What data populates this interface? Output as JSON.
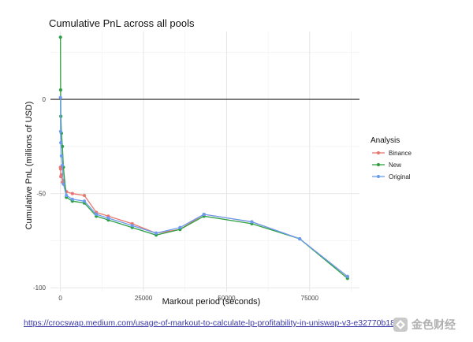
{
  "url_text": "https://crocswap.medium.com/usage-of-markout-to-calculate-lp-profitability-in-uniswap-v3-e32770b18e",
  "watermark": {
    "text": "金色财经",
    "icon": "jinse-logo-icon",
    "color": "#b0b0b0"
  },
  "chart_data": {
    "type": "line",
    "title": "Cumulative PnL across all pools",
    "xlabel": "Markout period (seconds)",
    "ylabel": "Cumulative PnL (millions of USD)",
    "xlim": [
      -3000,
      90000
    ],
    "ylim": [
      -102,
      36
    ],
    "x_ticks": [
      0,
      25000,
      50000,
      75000
    ],
    "x_tick_labels": [
      "0",
      "25000",
      "50000",
      "75000"
    ],
    "y_ticks": [
      -100,
      -50,
      0
    ],
    "y_tick_labels": [
      "-100",
      "-50",
      "0"
    ],
    "reference_line_y": 0,
    "grid": true,
    "legend": {
      "title": "Analysis",
      "position": "right"
    },
    "series": [
      {
        "name": "Binance",
        "color": "#e8776e",
        "x": [
          12,
          60,
          120,
          300,
          600,
          900,
          1800,
          3600,
          7200,
          10800,
          14400,
          21600,
          28800,
          36000,
          43200,
          57600,
          72000,
          86400
        ],
        "y": [
          -36,
          -37,
          -41,
          -40,
          -44,
          -43,
          -49,
          -50,
          -51,
          -60,
          -62,
          -66,
          -71,
          -69,
          -61,
          -65,
          -74,
          -94
        ]
      },
      {
        "name": "New",
        "color": "#2ea043",
        "x": [
          12,
          60,
          120,
          300,
          600,
          900,
          1800,
          3600,
          7200,
          10800,
          14400,
          21600,
          28800,
          36000,
          43200,
          57600,
          72000,
          86400
        ],
        "y": [
          33,
          5,
          -9,
          -18,
          -25,
          -36,
          -52,
          -54,
          -55,
          -62,
          -64,
          -68,
          -72,
          -69,
          -62,
          -66,
          -74,
          -95
        ]
      },
      {
        "name": "Original",
        "color": "#6b9bf2",
        "x": [
          12,
          60,
          120,
          300,
          600,
          900,
          1800,
          3600,
          7200,
          10800,
          14400,
          21600,
          28800,
          36000,
          43200,
          57600,
          72000,
          86400
        ],
        "y": [
          1,
          -17,
          -23,
          -30,
          -35,
          -45,
          -51,
          -53,
          -54,
          -61,
          -63,
          -67,
          -71,
          -68,
          -61,
          -65,
          -74,
          -94
        ]
      }
    ]
  }
}
